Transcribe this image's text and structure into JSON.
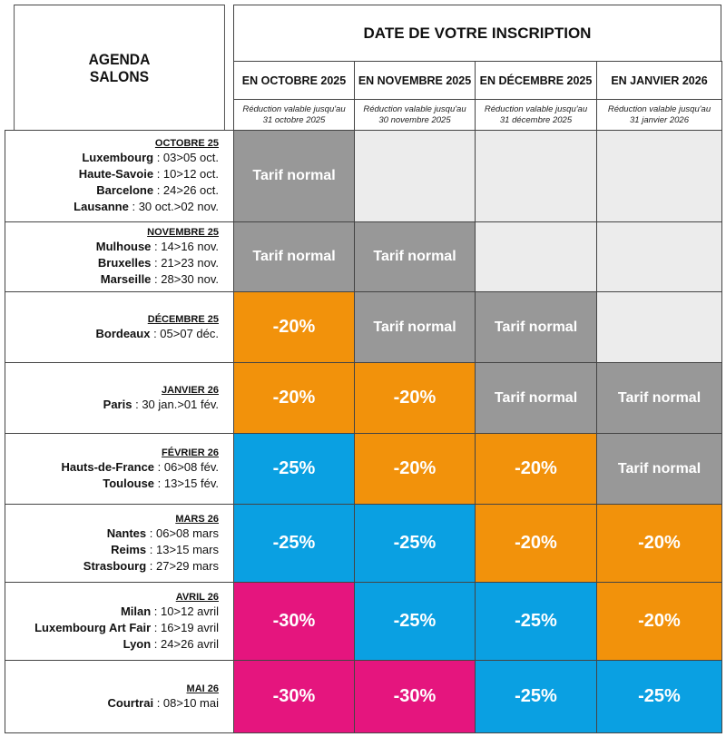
{
  "corner": {
    "line1": "AGENDA",
    "line2": "SALONS"
  },
  "header": "DATE DE VOTRE INSCRIPTION",
  "columns": [
    {
      "label": "EN OCTOBRE 2025",
      "note1": "Réduction valable jusqu'au",
      "note2": "31 octobre 2025"
    },
    {
      "label": "EN NOVEMBRE 2025",
      "note1": "Réduction valable jusqu'au",
      "note2": "30 novembre 2025"
    },
    {
      "label": "EN DÉCEMBRE 2025",
      "note1": "Réduction valable jusqu'au",
      "note2": "31 décembre 2025"
    },
    {
      "label": "EN JANVIER 2026",
      "note1": "Réduction valable jusqu'au",
      "note2": "31 janvier 2026"
    }
  ],
  "colors": {
    "normal": "#989898",
    "orange": "#f2920b",
    "blue": "#0aa0e2",
    "pink": "#e5157e",
    "empty": "#ececec"
  },
  "rows": [
    {
      "month": "OCTOBRE 25",
      "events": [
        {
          "city": "Luxembourg",
          "dates": "03>05 oct."
        },
        {
          "city": "Haute-Savoie",
          "dates": "10>12 oct."
        },
        {
          "city": "Barcelone",
          "dates": "24>26 oct."
        },
        {
          "city": "Lausanne",
          "dates": "30 oct.>02 nov."
        }
      ],
      "cells": [
        {
          "text": "Tarif normal",
          "color": "normal"
        },
        {
          "text": "",
          "color": "empty"
        },
        {
          "text": "",
          "color": "empty"
        },
        {
          "text": "",
          "color": "empty"
        }
      ]
    },
    {
      "month": "NOVEMBRE 25",
      "events": [
        {
          "city": "Mulhouse",
          "dates": "14>16 nov."
        },
        {
          "city": "Bruxelles",
          "dates": "21>23 nov."
        },
        {
          "city": "Marseille",
          "dates": "28>30 nov."
        }
      ],
      "cells": [
        {
          "text": "Tarif normal",
          "color": "normal"
        },
        {
          "text": "Tarif normal",
          "color": "normal"
        },
        {
          "text": "",
          "color": "empty"
        },
        {
          "text": "",
          "color": "empty"
        }
      ]
    },
    {
      "month": "DÉCEMBRE 25",
      "events": [
        {
          "city": "Bordeaux",
          "dates": "05>07 déc."
        }
      ],
      "cells": [
        {
          "text": "-20%",
          "color": "orange"
        },
        {
          "text": "Tarif normal",
          "color": "normal"
        },
        {
          "text": "Tarif normal",
          "color": "normal"
        },
        {
          "text": "",
          "color": "empty"
        }
      ]
    },
    {
      "month": "JANVIER 26",
      "events": [
        {
          "city": "Paris",
          "dates": "30 jan.>01 fév."
        }
      ],
      "cells": [
        {
          "text": "-20%",
          "color": "orange"
        },
        {
          "text": "-20%",
          "color": "orange"
        },
        {
          "text": "Tarif normal",
          "color": "normal"
        },
        {
          "text": "Tarif normal",
          "color": "normal"
        }
      ]
    },
    {
      "month": "FÉVRIER 26",
      "events": [
        {
          "city": "Hauts-de-France",
          "dates": "06>08 fév."
        },
        {
          "city": "Toulouse",
          "dates": "13>15 fév."
        }
      ],
      "cells": [
        {
          "text": "-25%",
          "color": "blue"
        },
        {
          "text": "-20%",
          "color": "orange"
        },
        {
          "text": "-20%",
          "color": "orange"
        },
        {
          "text": "Tarif normal",
          "color": "normal"
        }
      ]
    },
    {
      "month": "MARS 26",
      "events": [
        {
          "city": "Nantes",
          "dates": "06>08 mars"
        },
        {
          "city": "Reims",
          "dates": "13>15 mars"
        },
        {
          "city": "Strasbourg",
          "dates": "27>29 mars"
        }
      ],
      "cells": [
        {
          "text": "-25%",
          "color": "blue"
        },
        {
          "text": "-25%",
          "color": "blue"
        },
        {
          "text": "-20%",
          "color": "orange"
        },
        {
          "text": "-20%",
          "color": "orange"
        }
      ]
    },
    {
      "month": "AVRIL 26",
      "events": [
        {
          "city": "Milan",
          "dates": "10>12 avril"
        },
        {
          "city": "Luxembourg Art Fair",
          "dates": "16>19 avril"
        },
        {
          "city": "Lyon",
          "dates": "24>26 avril"
        }
      ],
      "cells": [
        {
          "text": "-30%",
          "color": "pink"
        },
        {
          "text": "-25%",
          "color": "blue"
        },
        {
          "text": "-25%",
          "color": "blue"
        },
        {
          "text": "-20%",
          "color": "orange"
        }
      ]
    },
    {
      "month": "MAI 26",
      "events": [
        {
          "city": "Courtrai",
          "dates": "08>10 mai"
        }
      ],
      "cells": [
        {
          "text": "-30%",
          "color": "pink"
        },
        {
          "text": "-30%",
          "color": "pink"
        },
        {
          "text": "-25%",
          "color": "blue"
        },
        {
          "text": "-25%",
          "color": "blue"
        }
      ]
    }
  ]
}
